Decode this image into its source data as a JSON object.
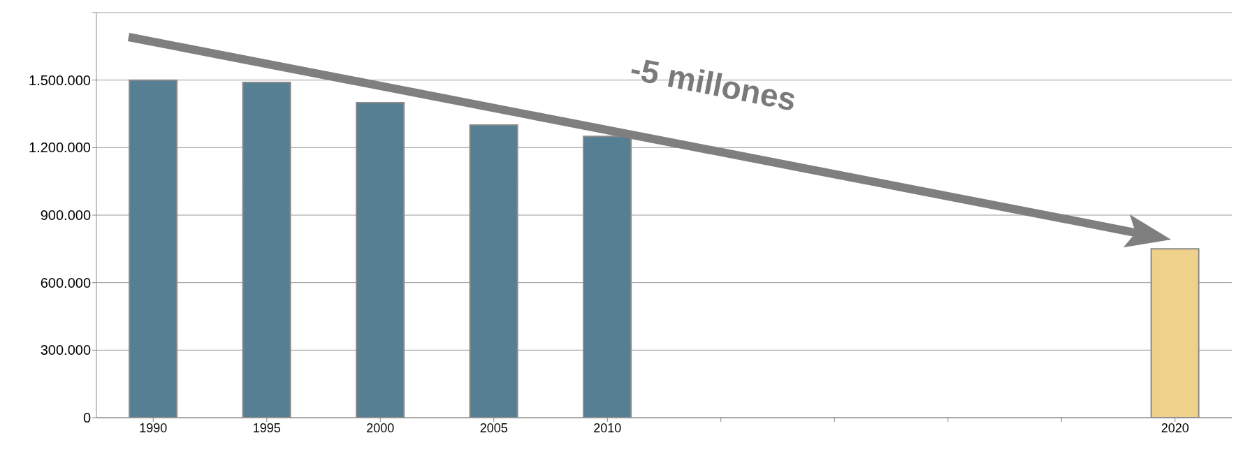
{
  "chart_data": {
    "type": "bar",
    "categories": [
      "1990",
      "1995",
      "2000",
      "2005",
      "2010",
      null,
      null,
      null,
      null,
      "2020"
    ],
    "values": [
      1500000,
      1490000,
      1400000,
      1300000,
      1250000,
      null,
      null,
      null,
      null,
      750000
    ],
    "colors": [
      "#567f94",
      "#567f94",
      "#567f94",
      "#567f94",
      "#567f94",
      null,
      null,
      null,
      null,
      "#f0d18c"
    ],
    "ylim": [
      0,
      1800000
    ],
    "yticks": [
      0,
      {
        "value": 300000,
        "label": "300.000"
      },
      {
        "value": 600000,
        "label": "600.000"
      },
      {
        "value": 900000,
        "label": "900.000"
      },
      {
        "value": 1200000,
        "label": "1.200.000"
      },
      {
        "value": 1500000,
        "label": "1.500.000"
      },
      {
        "value": 1800000,
        "label": null
      }
    ],
    "grid": "y",
    "annotations": [
      "-5 millones"
    ]
  }
}
